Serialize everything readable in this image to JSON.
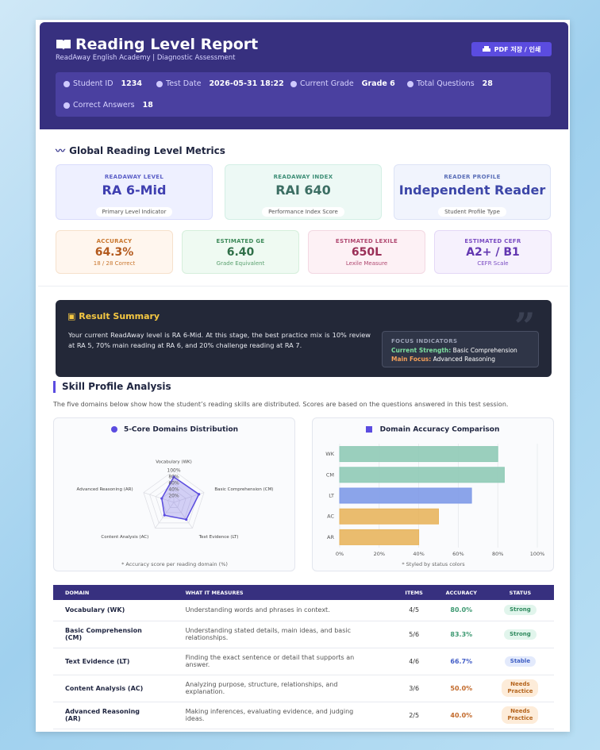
{
  "header": {
    "title": "Reading Level Report",
    "subtitle": "ReadAway English Academy | Diagnostic Assessment",
    "button": "PDF 저장 / 인쇄",
    "info": [
      {
        "label": "Student ID",
        "value": "1234"
      },
      {
        "label": "Test Date",
        "value": "2026-05-31 18:22"
      },
      {
        "label": "Current Grade",
        "value": "Grade 6"
      },
      {
        "label": "Total Questions",
        "value": "28"
      },
      {
        "label": "Correct Answers",
        "value": "18"
      }
    ]
  },
  "metrics": {
    "title": "Global Reading Level Metrics",
    "primary": [
      {
        "label": "READAWAY LEVEL",
        "value": "RA 6-Mid",
        "note": "Primary Level Indicator"
      },
      {
        "label": "READAWAY INDEX",
        "value": "RAI 640",
        "note": "Performance Index Score"
      },
      {
        "label": "READER PROFILE",
        "value": "Independent Reader",
        "note": "Student Profile Type"
      }
    ],
    "secondary": [
      {
        "label": "ACCURACY",
        "value": "64.3%",
        "note": "18 / 28 Correct"
      },
      {
        "label": "ESTIMATED GE",
        "value": "6.40",
        "note": "Grade Equivalent"
      },
      {
        "label": "ESTIMATED LEXILE",
        "value": "650L",
        "note": "Lexile Measure"
      },
      {
        "label": "ESTIMATED CEFR",
        "value": "A2+ / B1",
        "note": "CEFR Scale"
      }
    ]
  },
  "summary": {
    "title": "Result Summary",
    "text": "Your current ReadAway level is RA 6-Mid. At this stage, the best practice mix is 10% review at RA 5, 70% main reading at RA 6, and 20% challenge reading at RA 7.",
    "focus_title": "FOCUS INDICATORS",
    "strength_label": "Current Strength:",
    "strength": "Basic Comprehension",
    "focus_label": "Main Focus:",
    "focus": "Advanced Reasoning"
  },
  "skills": {
    "title": "Skill Profile Analysis",
    "description": "The five domains below show how the student’s reading skills are distributed. Scores are based on the questions answered in this test session."
  },
  "chart_data": [
    {
      "type": "radar",
      "title": "5-Core Domains Distribution",
      "categories": [
        "Vocabulary (WK)",
        "Basic Comprehension (CM)",
        "Text Evidence (LT)",
        "Content Analysis (AC)",
        "Advanced Reasoning (AR)"
      ],
      "values": [
        80,
        83.3,
        66.7,
        50,
        40
      ],
      "color": "#5b4ce0",
      "rlim": [
        0,
        100
      ],
      "rticks": [
        {
          "value": 20,
          "label": "20%"
        },
        {
          "value": 40,
          "label": "40%"
        },
        {
          "value": 60,
          "label": "60%"
        },
        {
          "value": 80,
          "label": "80%"
        },
        {
          "value": 100,
          "label": "100%"
        }
      ],
      "note": "* Accuracy score per reading domain (%)"
    },
    {
      "type": "bar",
      "orientation": "horizontal",
      "title": "Domain Accuracy Comparison",
      "categories": [
        "WK",
        "CM",
        "LT",
        "AC",
        "AR"
      ],
      "values": [
        80,
        83.3,
        66.7,
        50,
        40
      ],
      "colors": [
        "#8fcab6",
        "#8fcab6",
        "#7e9ae8",
        "#e8b55e",
        "#e8b55e"
      ],
      "xlim": [
        0,
        100
      ],
      "xticks": [
        {
          "value": 0,
          "label": "0%"
        },
        {
          "value": 20,
          "label": "20%"
        },
        {
          "value": 40,
          "label": "40%"
        },
        {
          "value": 60,
          "label": "60%"
        },
        {
          "value": 80,
          "label": "80%"
        },
        {
          "value": 100,
          "label": "100%"
        }
      ],
      "grid": true,
      "note": "* Styled by status colors"
    }
  ],
  "table": {
    "headers": [
      "DOMAIN",
      "WHAT IT MEASURES",
      "ITEMS",
      "ACCURACY",
      "STATUS"
    ],
    "rows": [
      [
        "Vocabulary (WK)",
        "Understanding words and phrases in context.",
        "4/5",
        "80.0%",
        "Strong"
      ],
      [
        "Basic Comprehension (CM)",
        "Understanding stated details, main ideas, and basic relationships.",
        "5/6",
        "83.3%",
        "Strong"
      ],
      [
        "Text Evidence (LT)",
        "Finding the exact sentence or detail that supports an answer.",
        "4/6",
        "66.7%",
        "Stable"
      ],
      [
        "Content Analysis (AC)",
        "Analyzing purpose, structure, relationships, and explanation.",
        "3/6",
        "50.0%",
        "Needs Practice"
      ],
      [
        "Advanced Reasoning (AR)",
        "Making inferences, evaluating evidence, and judging ideas.",
        "2/5",
        "40.0%",
        "Needs Practice"
      ]
    ]
  }
}
